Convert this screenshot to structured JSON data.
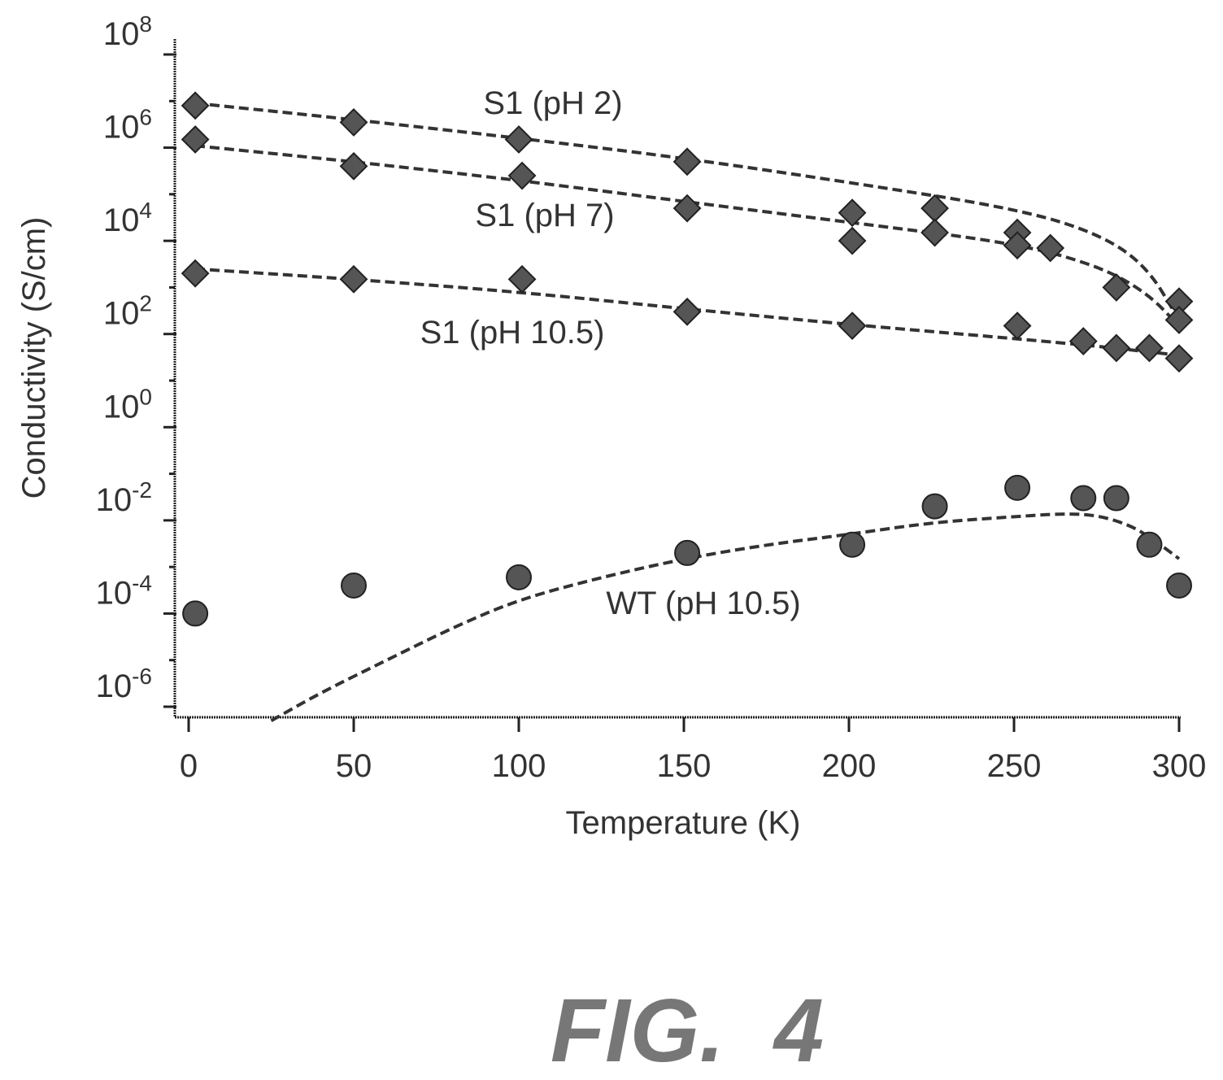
{
  "chart_data": {
    "type": "scatter",
    "title": "",
    "xlabel": "Temperature (K)",
    "ylabel": "Conductivity (S/cm)",
    "x_scale": "linear",
    "y_scale": "log",
    "xlim": [
      0,
      300
    ],
    "ylim": [
      1e-07,
      100000000.0
    ],
    "x_ticks": [
      0,
      50,
      100,
      150,
      200,
      250,
      300
    ],
    "x_tick_labels": [
      "0",
      "50",
      "100",
      "150",
      "200",
      "250",
      "300"
    ],
    "y_ticks": [
      1e-06,
      0.0001,
      0.01,
      1.0,
      100.0,
      10000.0,
      1000000.0,
      100000000.0
    ],
    "y_tick_bases": [
      "10",
      "10",
      "10",
      "10",
      "10",
      "10",
      "10",
      "10"
    ],
    "y_tick_exponents": [
      "-6",
      "-4",
      "-2",
      "0",
      "2",
      "4",
      "6",
      "8"
    ],
    "grid": false,
    "legend": "none",
    "series": [
      {
        "name": "S1 (pH 2)",
        "marker": "diamond",
        "x": [
          2,
          50,
          100,
          151,
          226,
          251,
          300
        ],
        "y": [
          8000000,
          3500000,
          1500000,
          500000,
          50000,
          15000,
          500
        ],
        "fit_x": [
          2,
          50,
          100,
          150,
          200,
          250,
          275,
          290,
          300
        ],
        "fit_y": [
          9000000,
          4000000,
          1600000,
          600000,
          180000,
          50000,
          15000,
          3000,
          200
        ]
      },
      {
        "name": "S1 (pH 7)",
        "marker": "diamond",
        "x": [
          2,
          50,
          101,
          151,
          201,
          201,
          226,
          251,
          261,
          281,
          300
        ],
        "y": [
          1500000,
          400000,
          250000,
          50000,
          40000,
          10000,
          15000,
          8000,
          7000,
          1000,
          200
        ],
        "fit_x": [
          2,
          50,
          100,
          150,
          200,
          250,
          275,
          290,
          300
        ],
        "fit_y": [
          1100000,
          500000,
          200000,
          70000,
          25000,
          9000,
          3000,
          800,
          150
        ]
      },
      {
        "name": "S1 (pH 10.5)",
        "marker": "diamond",
        "x": [
          2,
          50,
          101,
          151,
          201,
          251,
          271,
          281,
          291,
          300
        ],
        "y": [
          2000,
          1500,
          1500,
          300,
          150,
          150,
          70,
          50,
          50,
          30
        ],
        "fit_x": [
          2,
          50,
          100,
          150,
          200,
          250,
          275,
          300
        ],
        "fit_y": [
          2500,
          1500,
          800,
          350,
          160,
          80,
          55,
          35
        ]
      },
      {
        "name": "WT (pH 10.5)",
        "marker": "circle",
        "x": [
          2,
          50,
          100,
          151,
          201,
          226,
          251,
          271,
          281,
          291,
          300
        ],
        "y": [
          0.0001,
          0.0004,
          0.0006,
          0.002,
          0.003,
          0.02,
          0.05,
          0.03,
          0.03,
          0.003,
          0.0004
        ],
        "fit_x": [
          25,
          40,
          60,
          80,
          100,
          125,
          150,
          175,
          200,
          225,
          250,
          265,
          275,
          285,
          292,
          300
        ],
        "fit_y": [
          5e-07,
          2e-06,
          1e-05,
          5e-05,
          0.0002,
          0.0006,
          0.0015,
          0.003,
          0.005,
          0.009,
          0.012,
          0.014,
          0.013,
          0.008,
          0.004,
          0.0015
        ]
      }
    ]
  },
  "figure_label": "FIG.  4"
}
